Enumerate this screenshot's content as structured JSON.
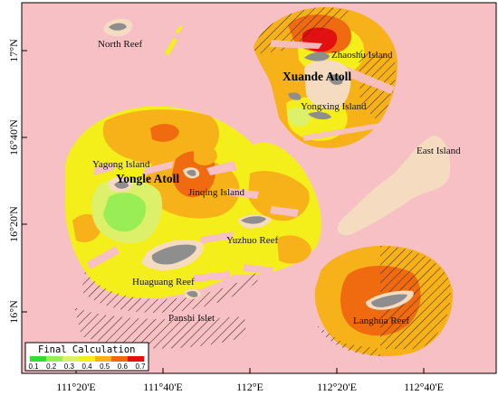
{
  "map": {
    "colors": {
      "background": "#f7c0c4",
      "land": "#f5dcc0",
      "reef": "#8e8e8e",
      "class_0_1": "#33dd33",
      "class_0_2": "#99ee55",
      "class_0_3": "#ddf06a",
      "class_0_4": "#f4ee1a",
      "class_0_5": "#f7b21a",
      "class_0_6": "#f06a10",
      "class_0_7": "#e21010"
    },
    "place_labels": {
      "north_reef": "North Reef",
      "zhaoshu_island": "Zhaoshu Island",
      "xuande_atoll": "Xuande Atoll",
      "yongxing_island": "Yongxing Island",
      "east_island": "East Island",
      "yagong_island": "Yagong Island",
      "yongle_atoll": "Yongle Atoll",
      "jinqing_island": "Jinqing Island",
      "yuzhuo_reef": "Yuzhuo Reef",
      "huaguang_reef": "Huaguang Reef",
      "panshi_islet": "Panshi Islet",
      "langhua_reef": "Langhua Reef"
    },
    "axes": {
      "latitude_ticks": [
        "17°N",
        "16°40'N",
        "16°20'N",
        "16°N"
      ],
      "longitude_ticks": [
        "111°20'E",
        "111°40'E",
        "112°E",
        "112°20'E",
        "112°40'E"
      ]
    },
    "legend": {
      "title": "Final Calculation",
      "ticks": [
        "0.1",
        "0.2",
        "0.3",
        "0.4",
        "0.5",
        "0.6",
        "0.7"
      ]
    }
  }
}
